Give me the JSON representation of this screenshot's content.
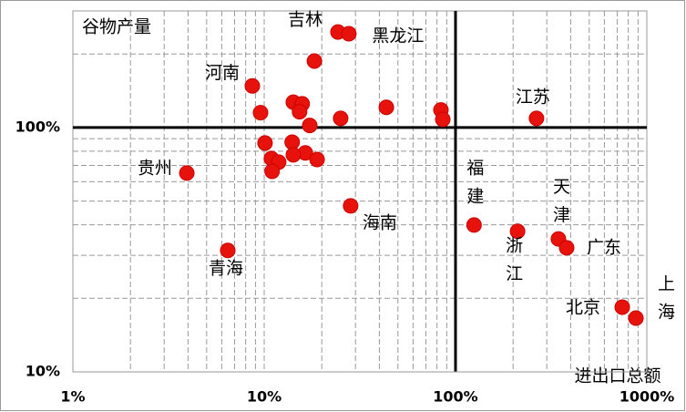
{
  "chart_data": {
    "type": "scatter",
    "y_label": "谷物产量",
    "x_label": "进出口总额",
    "log_x": true,
    "log_y": true,
    "xlim": [
      1,
      1000
    ],
    "ylim": [
      10,
      300
    ],
    "xticks": [
      {
        "value": 1,
        "label": "1%"
      },
      {
        "value": 10,
        "label": "10%"
      },
      {
        "value": 100,
        "label": "100%"
      },
      {
        "value": 1000,
        "label": "1000%"
      }
    ],
    "yticks": [
      {
        "value": 10,
        "label": "10%"
      },
      {
        "value": 100,
        "label": "100%"
      }
    ],
    "grid": true,
    "minor_grid": true,
    "quadrant_at_ticks": {
      "x": 2,
      "y": 1
    },
    "color": "#e8120c",
    "x": [
      24.3,
      27.7,
      18.3,
      8.67,
      14.2,
      15.8,
      15.3,
      9.57,
      25.1,
      17.3,
      43.5,
      83.9,
      85.8,
      265,
      10.1,
      14.0,
      16.4,
      14.2,
      18.9,
      10.9,
      11.9,
      11.0,
      3.94,
      28.3,
      125,
      211,
      345,
      381,
      6.45,
      744,
      877
    ],
    "values": [
      246,
      242,
      187,
      148,
      127,
      125,
      116,
      115,
      109,
      102,
      121,
      118,
      108,
      109,
      86.4,
      87.1,
      78.7,
      77.3,
      74,
      74.7,
      72.2,
      66.2,
      65.1,
      47.8,
      39.9,
      37.6,
      35,
      32.2,
      31.4,
      18.4,
      16.6
    ],
    "labels": [
      "吉林",
      "黑龙江",
      null,
      "河南",
      null,
      null,
      null,
      null,
      null,
      null,
      null,
      null,
      null,
      "江苏",
      null,
      null,
      null,
      null,
      null,
      null,
      null,
      null,
      "贵州",
      "海南",
      "福建",
      "浙江",
      "天津",
      "广东",
      "青海",
      "北京",
      "上海"
    ]
  }
}
